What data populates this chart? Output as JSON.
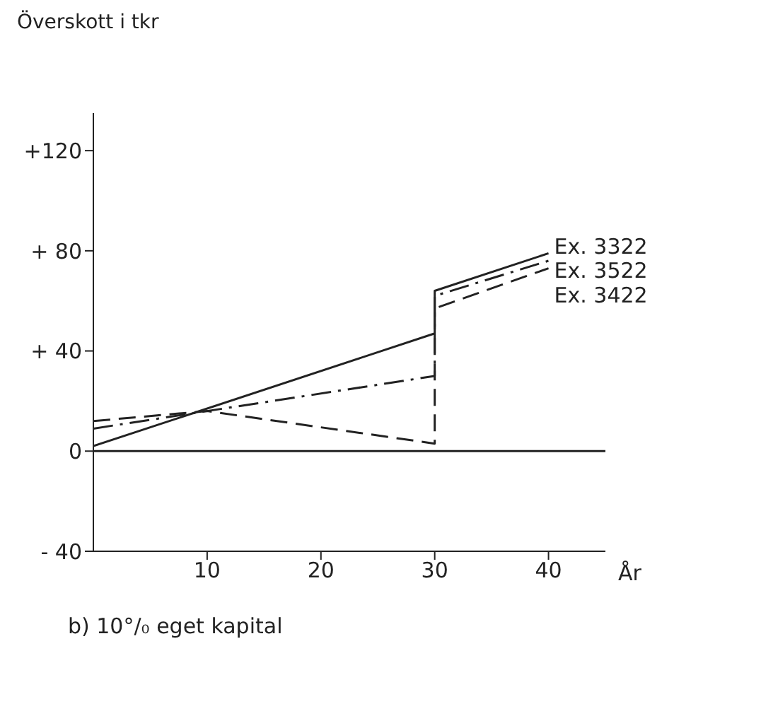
{
  "chart_data": {
    "type": "line",
    "ylabel": "Överskott i tkr",
    "xlabel": "År",
    "annotations": [
      "b) 10°/₀ eget kapital"
    ],
    "xlim": [
      0,
      45
    ],
    "xticks": [
      10,
      20,
      30,
      40
    ],
    "ylim": [
      -40,
      135
    ],
    "yticks": [
      {
        "value": -40,
        "label": "- 40"
      },
      {
        "value": 0,
        "label": "0"
      },
      {
        "value": 40,
        "label": "+ 40"
      },
      {
        "value": 80,
        "label": "+ 80"
      },
      {
        "value": 120,
        "label": "+120"
      }
    ],
    "marker": "none",
    "ref_lines": [
      {
        "axis": "y",
        "value": 0,
        "color": "#222222",
        "line_style": "solid"
      }
    ],
    "series": [
      {
        "name": "Ex. 3322",
        "color": "#222222",
        "line_style": "solid",
        "x": [
          0,
          30,
          30,
          40
        ],
        "values": [
          2,
          47,
          64,
          79
        ]
      },
      {
        "name": "Ex. 3522",
        "color": "#222222",
        "line_style": "dashdot",
        "x": [
          0,
          30,
          30,
          40
        ],
        "values": [
          9,
          30,
          62,
          76
        ]
      },
      {
        "name": "Ex. 3422",
        "color": "#222222",
        "line_style": "dashed",
        "x": [
          0,
          10,
          30,
          30,
          40
        ],
        "values": [
          12,
          16,
          3,
          57,
          73
        ]
      }
    ]
  }
}
